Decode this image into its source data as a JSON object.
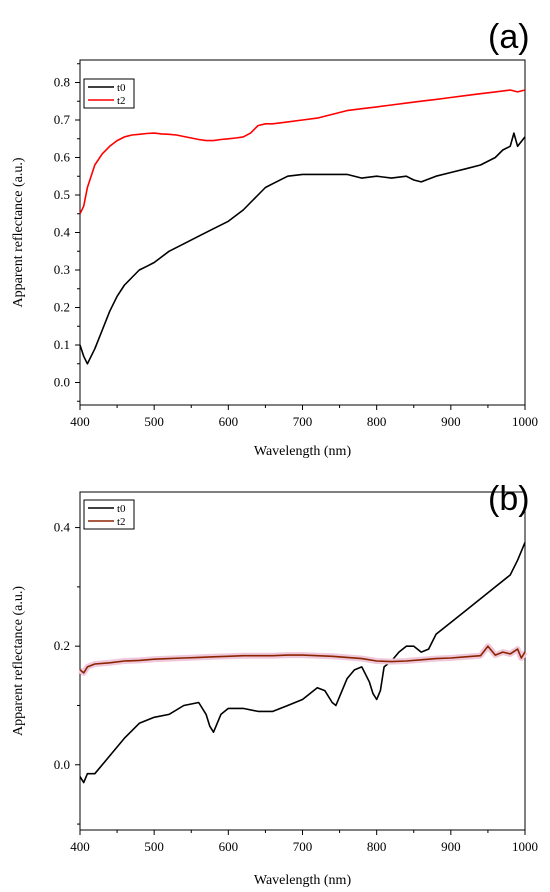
{
  "chart_data": [
    {
      "type": "line",
      "panel_label": "(a)",
      "xlabel": "Wavelength (nm)",
      "ylabel": "Apparent reflectance (a.u.)",
      "xlim": [
        400,
        1000
      ],
      "ylim": [
        -0.06,
        0.86
      ],
      "xticks": [
        400,
        500,
        600,
        700,
        800,
        900,
        1000
      ],
      "xtick_labels": [
        "400",
        "500",
        "600",
        "700",
        "800",
        "900",
        "1000"
      ],
      "yticks": [
        0.0,
        0.1,
        0.2,
        0.3,
        0.4,
        0.5,
        0.6,
        0.7,
        0.8
      ],
      "ytick_labels": [
        "0.0",
        "0.1",
        "0.2",
        "0.3",
        "0.4",
        "0.5",
        "0.6",
        "0.7",
        "0.8"
      ],
      "grid": false,
      "legend_position": "top-left",
      "series": [
        {
          "name": "t0",
          "color": "#000000",
          "x": [
            400,
            405,
            410,
            420,
            430,
            440,
            450,
            460,
            470,
            480,
            490,
            500,
            520,
            540,
            560,
            580,
            600,
            620,
            640,
            650,
            660,
            680,
            700,
            720,
            740,
            760,
            780,
            800,
            820,
            840,
            850,
            860,
            880,
            900,
            920,
            940,
            960,
            970,
            980,
            985,
            990,
            1000
          ],
          "y": [
            0.1,
            0.07,
            0.05,
            0.09,
            0.14,
            0.19,
            0.23,
            0.26,
            0.28,
            0.3,
            0.31,
            0.32,
            0.35,
            0.37,
            0.39,
            0.41,
            0.43,
            0.46,
            0.5,
            0.52,
            0.53,
            0.55,
            0.555,
            0.555,
            0.555,
            0.555,
            0.545,
            0.55,
            0.545,
            0.55,
            0.54,
            0.535,
            0.55,
            0.56,
            0.57,
            0.58,
            0.6,
            0.62,
            0.63,
            0.665,
            0.63,
            0.655
          ]
        },
        {
          "name": "t2",
          "color": "#ff0000",
          "x": [
            400,
            405,
            410,
            420,
            430,
            440,
            450,
            460,
            470,
            480,
            490,
            500,
            510,
            520,
            530,
            540,
            550,
            560,
            570,
            580,
            590,
            600,
            610,
            620,
            630,
            640,
            650,
            660,
            680,
            700,
            720,
            740,
            760,
            780,
            800,
            820,
            840,
            860,
            880,
            900,
            920,
            940,
            960,
            980,
            990,
            1000
          ],
          "y": [
            0.45,
            0.47,
            0.52,
            0.58,
            0.61,
            0.63,
            0.645,
            0.655,
            0.66,
            0.662,
            0.664,
            0.665,
            0.663,
            0.662,
            0.66,
            0.656,
            0.652,
            0.648,
            0.645,
            0.645,
            0.648,
            0.65,
            0.652,
            0.655,
            0.665,
            0.685,
            0.69,
            0.69,
            0.695,
            0.7,
            0.705,
            0.715,
            0.725,
            0.73,
            0.735,
            0.74,
            0.745,
            0.75,
            0.755,
            0.76,
            0.765,
            0.77,
            0.775,
            0.78,
            0.775,
            0.78
          ]
        }
      ]
    },
    {
      "type": "line",
      "panel_label": "(b)",
      "xlabel": "Wavelength (nm)",
      "ylabel": "Apparent reflectance (a.u.)",
      "xlim": [
        400,
        1000
      ],
      "ylim": [
        -0.11,
        0.46
      ],
      "xticks": [
        400,
        500,
        600,
        700,
        800,
        900,
        1000
      ],
      "xtick_labels": [
        "400",
        "500",
        "600",
        "700",
        "800",
        "900",
        "1000"
      ],
      "yticks": [
        0.0,
        0.2,
        0.4
      ],
      "ytick_labels": [
        "0.0",
        "0.2",
        "0.4"
      ],
      "grid": false,
      "legend_position": "top-left",
      "series": [
        {
          "name": "t0",
          "color": "#000000",
          "x": [
            400,
            405,
            410,
            420,
            440,
            460,
            480,
            500,
            520,
            540,
            560,
            570,
            575,
            580,
            585,
            590,
            600,
            620,
            640,
            660,
            680,
            700,
            720,
            730,
            740,
            745,
            750,
            760,
            770,
            780,
            790,
            795,
            800,
            805,
            810,
            820,
            830,
            840,
            850,
            860,
            870,
            880,
            900,
            920,
            940,
            960,
            980,
            990,
            1000
          ],
          "y": [
            -0.02,
            -0.03,
            -0.015,
            -0.015,
            0.015,
            0.045,
            0.07,
            0.08,
            0.085,
            0.1,
            0.105,
            0.085,
            0.065,
            0.055,
            0.07,
            0.085,
            0.095,
            0.095,
            0.09,
            0.09,
            0.1,
            0.11,
            0.13,
            0.125,
            0.105,
            0.1,
            0.115,
            0.145,
            0.16,
            0.165,
            0.14,
            0.12,
            0.11,
            0.125,
            0.165,
            0.175,
            0.19,
            0.2,
            0.2,
            0.19,
            0.195,
            0.22,
            0.24,
            0.26,
            0.28,
            0.3,
            0.32,
            0.345,
            0.375
          ]
        },
        {
          "name": "t2",
          "color": "#8b2500",
          "band_color": "#f0c8dc",
          "x": [
            400,
            405,
            410,
            420,
            440,
            460,
            480,
            500,
            520,
            540,
            560,
            580,
            600,
            620,
            640,
            660,
            680,
            700,
            720,
            740,
            760,
            780,
            800,
            820,
            840,
            860,
            880,
            900,
            920,
            940,
            950,
            960,
            970,
            980,
            990,
            995,
            1000
          ],
          "y": [
            0.16,
            0.155,
            0.165,
            0.17,
            0.172,
            0.175,
            0.176,
            0.178,
            0.179,
            0.18,
            0.181,
            0.182,
            0.183,
            0.184,
            0.184,
            0.184,
            0.185,
            0.185,
            0.184,
            0.183,
            0.181,
            0.179,
            0.175,
            0.174,
            0.175,
            0.177,
            0.179,
            0.18,
            0.182,
            0.184,
            0.2,
            0.185,
            0.19,
            0.187,
            0.195,
            0.18,
            0.19
          ]
        }
      ]
    }
  ]
}
